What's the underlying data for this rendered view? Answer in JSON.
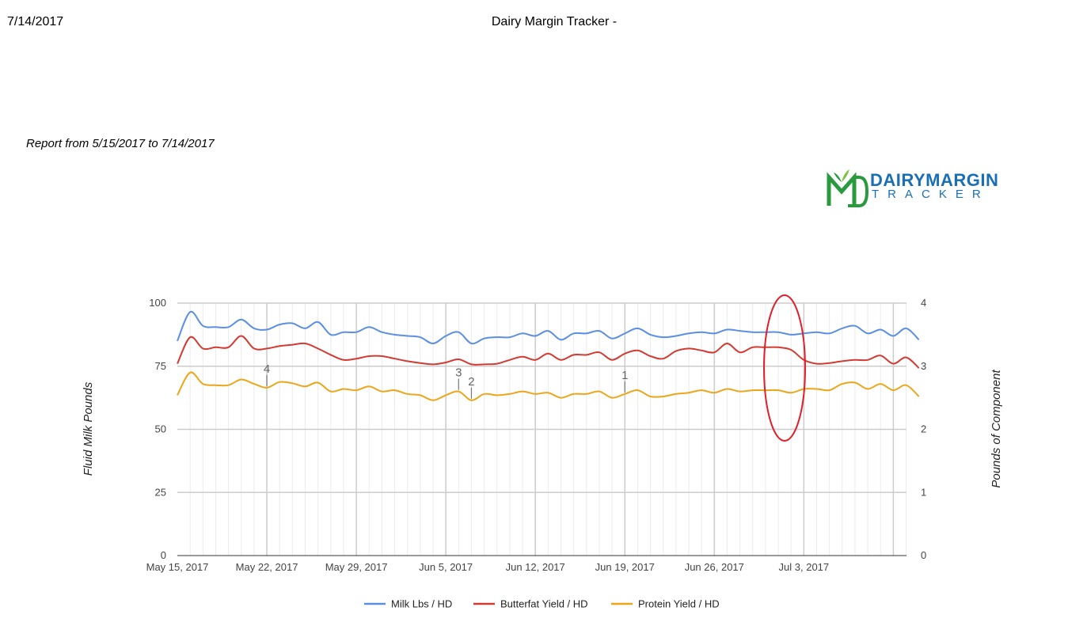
{
  "header": {
    "date": "7/14/2017",
    "title": "Dairy Margin Tracker -",
    "report_range": "Report from 5/15/2017 to 7/14/2017"
  },
  "logo": {
    "word1": "DAIRYMARGIN",
    "word2": "TRACKER"
  },
  "colors": {
    "milk": "#5a8fe4",
    "butterfat": "#d43a32",
    "protein": "#eda51a",
    "highlight": "#e11f2a"
  },
  "chart_data": {
    "type": "line",
    "ylabel": "Fluid Milk Pounds",
    "y2label": "Pounds of Component",
    "ylim": [
      0,
      100
    ],
    "y2lim": [
      0,
      4
    ],
    "yticks": [
      "0",
      "25",
      "50",
      "75",
      "100"
    ],
    "y2ticks": [
      "0",
      "1",
      "2",
      "3",
      "4"
    ],
    "xticks": [
      "May 15, 2017",
      "May 22, 2017",
      "May 29, 2017",
      "Jun 5, 2017",
      "Jun 12, 2017",
      "Jun 19, 2017",
      "Jun 26, 2017",
      "Jul 3, 2017"
    ],
    "grid": true,
    "legend_position": "bottom",
    "annotations": [
      {
        "label": "4",
        "day": 7,
        "series": "Protein Yield / HD"
      },
      {
        "label": "3",
        "day": 22,
        "series": "Protein Yield / HD"
      },
      {
        "label": "2",
        "day": 23,
        "series": "Protein Yield / HD"
      },
      {
        "label": "1",
        "day": 35,
        "series": "Protein Yield / HD"
      }
    ],
    "series": [
      {
        "name": "Milk Lbs / HD",
        "axis": "left",
        "values": [
          85.0,
          96.5,
          91.0,
          90.5,
          90.5,
          93.5,
          90.0,
          89.5,
          91.5,
          92.0,
          90.0,
          92.5,
          87.5,
          88.5,
          88.5,
          90.5,
          88.5,
          87.5,
          87.0,
          86.5,
          84.0,
          87.0,
          88.5,
          84.0,
          86.0,
          86.5,
          86.5,
          88.0,
          87.0,
          89.0,
          85.5,
          88.0,
          88.0,
          89.0,
          86.0,
          88.0,
          90.0,
          87.5,
          86.5,
          87.0,
          88.0,
          88.5,
          88.0,
          89.5,
          89.0,
          88.5,
          88.5,
          88.5,
          87.5,
          88.0,
          88.5,
          88.0,
          90.0,
          91.0,
          88.0,
          89.5,
          87.0,
          90.0,
          85.5
        ]
      },
      {
        "name": "Butterfat Yield / HD",
        "axis": "right",
        "values": [
          3.04,
          3.46,
          3.28,
          3.3,
          3.3,
          3.48,
          3.28,
          3.28,
          3.32,
          3.34,
          3.36,
          3.28,
          3.18,
          3.1,
          3.12,
          3.16,
          3.16,
          3.12,
          3.08,
          3.05,
          3.03,
          3.06,
          3.11,
          3.03,
          3.03,
          3.04,
          3.1,
          3.15,
          3.1,
          3.2,
          3.1,
          3.18,
          3.18,
          3.22,
          3.1,
          3.2,
          3.25,
          3.16,
          3.12,
          3.24,
          3.28,
          3.25,
          3.22,
          3.36,
          3.22,
          3.3,
          3.3,
          3.3,
          3.26,
          3.1,
          3.04,
          3.05,
          3.08,
          3.1,
          3.1,
          3.17,
          3.04,
          3.14,
          2.97
        ]
      },
      {
        "name": "Protein Yield / HD",
        "axis": "right",
        "values": [
          2.54,
          2.9,
          2.72,
          2.7,
          2.7,
          2.79,
          2.72,
          2.66,
          2.75,
          2.73,
          2.68,
          2.74,
          2.6,
          2.64,
          2.62,
          2.68,
          2.6,
          2.62,
          2.56,
          2.54,
          2.46,
          2.54,
          2.6,
          2.46,
          2.56,
          2.54,
          2.56,
          2.6,
          2.56,
          2.58,
          2.5,
          2.56,
          2.56,
          2.6,
          2.5,
          2.56,
          2.62,
          2.52,
          2.52,
          2.56,
          2.58,
          2.62,
          2.58,
          2.64,
          2.6,
          2.62,
          2.62,
          2.62,
          2.58,
          2.64,
          2.64,
          2.62,
          2.72,
          2.74,
          2.64,
          2.72,
          2.62,
          2.7,
          2.52
        ]
      }
    ]
  }
}
